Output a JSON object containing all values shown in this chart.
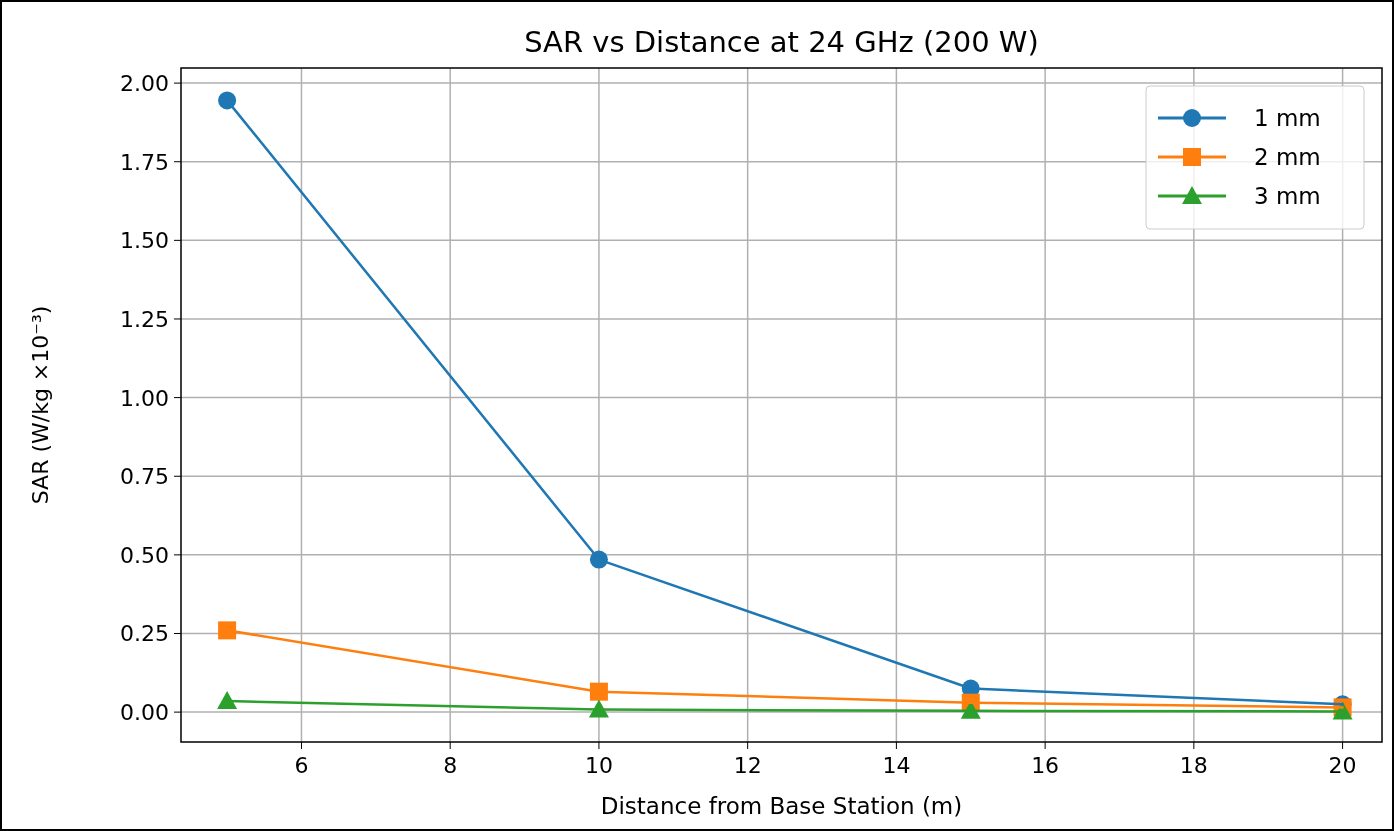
{
  "chart_data": {
    "type": "line",
    "title": "SAR vs Distance at 24 GHz (200 W)",
    "xlabel": "Distance from Base Station (m)",
    "ylabel": "SAR (W/kg ×10⁻³)",
    "x": [
      5,
      10,
      15,
      20
    ],
    "series": [
      {
        "name": "1 mm",
        "color": "#1f77b4",
        "marker": "circle",
        "values": [
          1.945,
          0.485,
          0.075,
          0.025
        ]
      },
      {
        "name": "2 mm",
        "color": "#ff7f0e",
        "marker": "square",
        "values": [
          0.26,
          0.065,
          0.03,
          0.015
        ]
      },
      {
        "name": "3 mm",
        "color": "#2ca02c",
        "marker": "triangle",
        "values": [
          0.035,
          0.008,
          0.004,
          0.002
        ]
      }
    ],
    "xlim": [
      4.38,
      20.53
    ],
    "xticks": [
      6,
      8,
      10,
      12,
      14,
      16,
      18,
      20
    ],
    "ylim": [
      -0.095,
      2.048
    ],
    "yticks": [
      {
        "value": 0,
        "label": "0.00"
      },
      {
        "value": 0.25,
        "label": "0.25"
      },
      {
        "value": 0.5,
        "label": "0.50"
      },
      {
        "value": 0.75,
        "label": "0.75"
      },
      {
        "value": 1,
        "label": "1.00"
      },
      {
        "value": 1.25,
        "label": "1.25"
      },
      {
        "value": 1.5,
        "label": "1.50"
      },
      {
        "value": 1.75,
        "label": "1.75"
      },
      {
        "value": 2,
        "label": "2.00"
      }
    ],
    "grid": true,
    "legend": "top right",
    "line_style": "solid"
  }
}
